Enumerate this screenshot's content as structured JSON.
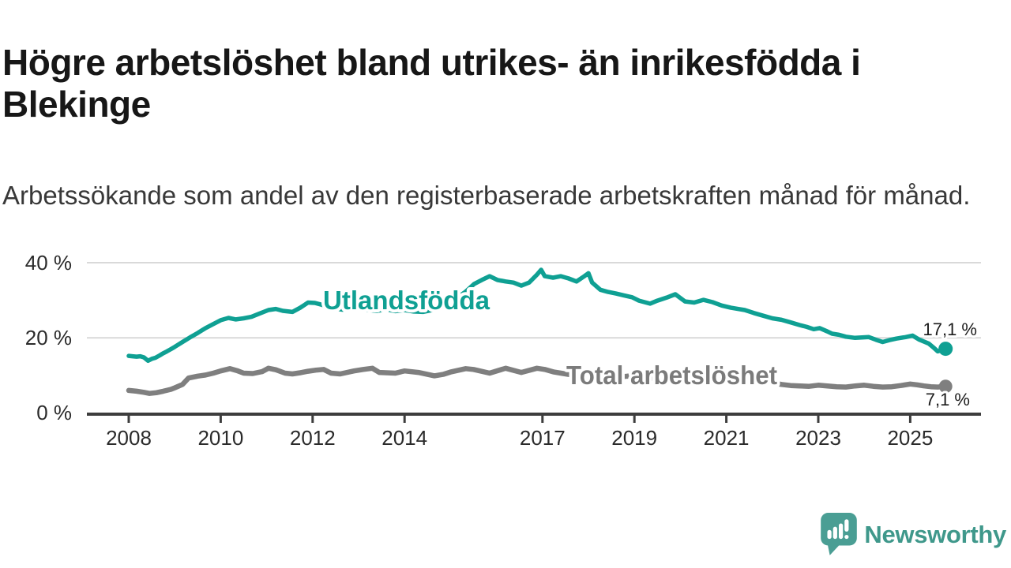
{
  "header": {
    "title": "Högre arbetslöshet bland utrikes- än inrikesfödda i Blekinge",
    "subtitle": "Arbetssökande som andel av den registerbaserade arbetskraften månad för månad."
  },
  "footer": {
    "brand": "Newsworthy"
  },
  "colors": {
    "foreign_born_line": "#0fa093",
    "total_line": "#7f7f7f",
    "total_label": "#7b7b7b",
    "grid": "#d9d9d9",
    "axis": "#3d3d3d",
    "logo_teal": "#4a9e94"
  },
  "chart_data": {
    "type": "line",
    "unit": "%",
    "grid": "horizontal-only",
    "legend_position": "inline-labels-on-lines",
    "x_axis": {
      "range": [
        2008,
        2025.8
      ],
      "ticks": [
        2008,
        2010,
        2012,
        2014,
        2017,
        2019,
        2021,
        2023,
        2025
      ],
      "tick_labels": [
        "2008",
        "2010",
        "2012",
        "2014",
        "2017",
        "2019",
        "2021",
        "2023",
        "2025"
      ]
    },
    "y_axis": {
      "range": [
        0,
        42
      ],
      "ticks": [
        0,
        20,
        40
      ],
      "tick_labels": [
        "0 %",
        "20 %",
        "40 %"
      ]
    },
    "series": [
      {
        "name": "Utlandsfödda",
        "color": "#0fa093",
        "end_value": 17.1,
        "end_label": "17,1 %",
        "points": [
          [
            2008.0,
            15.2
          ],
          [
            2008.08,
            15.1
          ],
          [
            2008.17,
            15.0
          ],
          [
            2008.25,
            15.1
          ],
          [
            2008.33,
            14.8
          ],
          [
            2008.42,
            13.9
          ],
          [
            2008.5,
            14.4
          ],
          [
            2008.58,
            14.7
          ],
          [
            2008.67,
            15.3
          ],
          [
            2008.75,
            15.9
          ],
          [
            2008.83,
            16.4
          ],
          [
            2008.92,
            17.0
          ],
          [
            2009.0,
            17.6
          ],
          [
            2009.17,
            18.9
          ],
          [
            2009.33,
            20.1
          ],
          [
            2009.5,
            21.3
          ],
          [
            2009.67,
            22.6
          ],
          [
            2009.83,
            23.6
          ],
          [
            2010.0,
            24.7
          ],
          [
            2010.17,
            25.3
          ],
          [
            2010.33,
            24.9
          ],
          [
            2010.5,
            25.2
          ],
          [
            2010.67,
            25.6
          ],
          [
            2010.83,
            26.4
          ],
          [
            2011.04,
            27.4
          ],
          [
            2011.2,
            27.7
          ],
          [
            2011.35,
            27.2
          ],
          [
            2011.56,
            26.9
          ],
          [
            2011.73,
            28.0
          ],
          [
            2011.9,
            29.4
          ],
          [
            2012.05,
            29.3
          ],
          [
            2012.2,
            28.8
          ],
          [
            2012.35,
            28.1
          ],
          [
            2012.5,
            27.8
          ],
          [
            2012.65,
            27.5
          ],
          [
            2012.8,
            27.8
          ],
          [
            2013.0,
            28.0
          ],
          [
            2013.2,
            27.4
          ],
          [
            2013.4,
            27.2
          ],
          [
            2013.6,
            27.6
          ],
          [
            2013.8,
            27.1
          ],
          [
            2014.0,
            27.4
          ],
          [
            2014.2,
            27.0
          ],
          [
            2014.4,
            26.9
          ],
          [
            2014.6,
            27.4
          ],
          [
            2014.8,
            28.6
          ],
          [
            2015.0,
            29.8
          ],
          [
            2015.17,
            30.9
          ],
          [
            2015.33,
            32.3
          ],
          [
            2015.51,
            34.3
          ],
          [
            2015.68,
            35.4
          ],
          [
            2015.85,
            36.4
          ],
          [
            2016.02,
            35.4
          ],
          [
            2016.2,
            35.0
          ],
          [
            2016.37,
            34.7
          ],
          [
            2016.54,
            33.9
          ],
          [
            2016.71,
            34.7
          ],
          [
            2016.88,
            36.8
          ],
          [
            2016.97,
            38.1
          ],
          [
            2017.05,
            36.4
          ],
          [
            2017.23,
            36.0
          ],
          [
            2017.4,
            36.4
          ],
          [
            2017.57,
            35.8
          ],
          [
            2017.74,
            35.0
          ],
          [
            2017.91,
            36.4
          ],
          [
            2018.0,
            37.2
          ],
          [
            2018.08,
            34.7
          ],
          [
            2018.26,
            32.8
          ],
          [
            2018.43,
            32.2
          ],
          [
            2018.6,
            31.8
          ],
          [
            2018.77,
            31.3
          ],
          [
            2018.95,
            30.8
          ],
          [
            2019.1,
            29.9
          ],
          [
            2019.34,
            29.1
          ],
          [
            2019.5,
            29.9
          ],
          [
            2019.7,
            30.7
          ],
          [
            2019.89,
            31.6
          ],
          [
            2020.1,
            29.7
          ],
          [
            2020.3,
            29.4
          ],
          [
            2020.5,
            30.1
          ],
          [
            2020.7,
            29.5
          ],
          [
            2020.9,
            28.6
          ],
          [
            2021.1,
            28.0
          ],
          [
            2021.25,
            27.7
          ],
          [
            2021.4,
            27.4
          ],
          [
            2021.6,
            26.6
          ],
          [
            2021.8,
            25.9
          ],
          [
            2022.0,
            25.2
          ],
          [
            2022.2,
            24.8
          ],
          [
            2022.4,
            24.1
          ],
          [
            2022.6,
            23.4
          ],
          [
            2022.75,
            22.9
          ],
          [
            2022.9,
            22.3
          ],
          [
            2023.03,
            22.6
          ],
          [
            2023.2,
            21.7
          ],
          [
            2023.3,
            21.1
          ],
          [
            2023.45,
            20.8
          ],
          [
            2023.6,
            20.3
          ],
          [
            2023.8,
            20.0
          ],
          [
            2024.1,
            20.2
          ],
          [
            2024.25,
            19.5
          ],
          [
            2024.4,
            18.9
          ],
          [
            2024.55,
            19.4
          ],
          [
            2024.7,
            19.8
          ],
          [
            2024.9,
            20.2
          ],
          [
            2025.05,
            20.6
          ],
          [
            2025.2,
            19.5
          ],
          [
            2025.4,
            18.5
          ],
          [
            2025.5,
            17.5
          ],
          [
            2025.6,
            16.4
          ],
          [
            2025.68,
            16.7
          ],
          [
            2025.77,
            17.1
          ]
        ]
      },
      {
        "name": "Total arbetslöshet",
        "color": "#7f7f7f",
        "end_value": 7.1,
        "end_label": "7,1 %",
        "points": [
          [
            2008.0,
            6.0
          ],
          [
            2008.17,
            5.8
          ],
          [
            2008.33,
            5.5
          ],
          [
            2008.45,
            5.2
          ],
          [
            2008.6,
            5.4
          ],
          [
            2008.75,
            5.8
          ],
          [
            2008.92,
            6.3
          ],
          [
            2009.0,
            6.7
          ],
          [
            2009.17,
            7.6
          ],
          [
            2009.3,
            9.3
          ],
          [
            2009.5,
            9.8
          ],
          [
            2009.67,
            10.1
          ],
          [
            2009.84,
            10.6
          ],
          [
            2010.0,
            11.2
          ],
          [
            2010.2,
            11.8
          ],
          [
            2010.35,
            11.3
          ],
          [
            2010.5,
            10.6
          ],
          [
            2010.7,
            10.5
          ],
          [
            2010.9,
            11.0
          ],
          [
            2011.04,
            11.9
          ],
          [
            2011.2,
            11.5
          ],
          [
            2011.4,
            10.6
          ],
          [
            2011.56,
            10.4
          ],
          [
            2011.73,
            10.7
          ],
          [
            2011.9,
            11.1
          ],
          [
            2012.07,
            11.4
          ],
          [
            2012.24,
            11.6
          ],
          [
            2012.4,
            10.6
          ],
          [
            2012.6,
            10.4
          ],
          [
            2012.9,
            11.2
          ],
          [
            2013.1,
            11.6
          ],
          [
            2013.3,
            11.9
          ],
          [
            2013.45,
            10.8
          ],
          [
            2013.6,
            10.7
          ],
          [
            2013.8,
            10.6
          ],
          [
            2014.0,
            11.2
          ],
          [
            2014.3,
            10.8
          ],
          [
            2014.65,
            9.9
          ],
          [
            2014.85,
            10.3
          ],
          [
            2015.0,
            10.9
          ],
          [
            2015.33,
            11.8
          ],
          [
            2015.5,
            11.6
          ],
          [
            2015.85,
            10.6
          ],
          [
            2016.2,
            11.9
          ],
          [
            2016.54,
            10.8
          ],
          [
            2016.88,
            11.9
          ],
          [
            2017.05,
            11.6
          ],
          [
            2017.25,
            10.9
          ],
          [
            2017.4,
            10.6
          ],
          [
            2017.6,
            10.2
          ],
          [
            2017.9,
            10.5
          ],
          [
            2018.1,
            10.3
          ],
          [
            2018.35,
            9.8
          ],
          [
            2018.6,
            9.5
          ],
          [
            2018.85,
            9.8
          ],
          [
            2019.1,
            9.6
          ],
          [
            2019.35,
            9.3
          ],
          [
            2019.6,
            9.1
          ],
          [
            2019.85,
            9.5
          ],
          [
            2020.1,
            10.0
          ],
          [
            2020.4,
            10.6
          ],
          [
            2020.7,
            10.3
          ],
          [
            2020.95,
            9.9
          ],
          [
            2021.2,
            9.4
          ],
          [
            2021.45,
            9.0
          ],
          [
            2021.7,
            8.6
          ],
          [
            2021.95,
            8.2
          ],
          [
            2022.2,
            7.6
          ],
          [
            2022.4,
            7.3
          ],
          [
            2022.6,
            7.2
          ],
          [
            2022.8,
            7.1
          ],
          [
            2023.0,
            7.4
          ],
          [
            2023.2,
            7.2
          ],
          [
            2023.4,
            7.0
          ],
          [
            2023.6,
            6.9
          ],
          [
            2023.8,
            7.2
          ],
          [
            2024.0,
            7.4
          ],
          [
            2024.2,
            7.1
          ],
          [
            2024.4,
            6.9
          ],
          [
            2024.6,
            7.0
          ],
          [
            2024.8,
            7.3
          ],
          [
            2025.0,
            7.7
          ],
          [
            2025.15,
            7.5
          ],
          [
            2025.3,
            7.2
          ],
          [
            2025.45,
            7.0
          ],
          [
            2025.6,
            6.9
          ],
          [
            2025.77,
            7.1
          ]
        ]
      }
    ]
  }
}
